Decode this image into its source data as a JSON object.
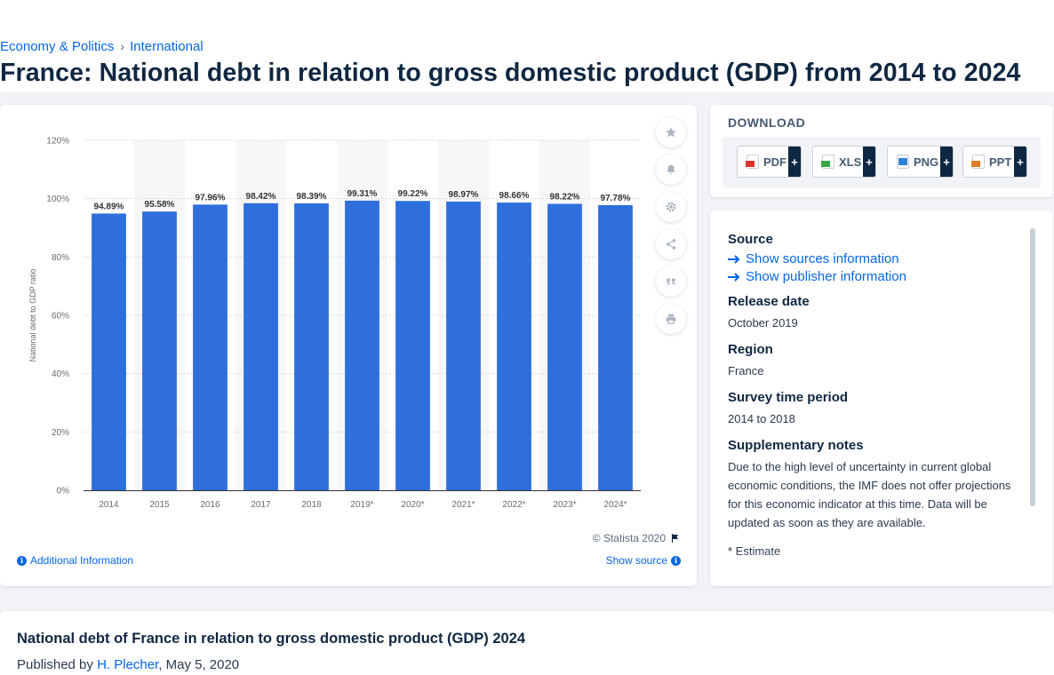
{
  "breadcrumb": {
    "items": [
      "Economy & Politics",
      "International"
    ],
    "separator": "›"
  },
  "page_title": "France: National debt in relation to gross domestic product (GDP) from 2014 to 2024",
  "chart_data": {
    "type": "bar",
    "categories": [
      "2014",
      "2015",
      "2016",
      "2017",
      "2018",
      "2019*",
      "2020*",
      "2021*",
      "2022*",
      "2023*",
      "2024*"
    ],
    "values": [
      94.89,
      95.58,
      97.96,
      98.42,
      98.39,
      99.31,
      99.22,
      98.97,
      98.66,
      98.22,
      97.78
    ],
    "value_labels": [
      "94.89%",
      "95.58%",
      "97.96%",
      "98.42%",
      "98.39%",
      "99.31%",
      "99.22%",
      "98.97%",
      "98.66%",
      "98.22%",
      "97.78%"
    ],
    "ylabel": "National debt to GDP ratio",
    "xlabel": "",
    "ylim": [
      0,
      120
    ],
    "yticks": [
      "0%",
      "20%",
      "40%",
      "60%",
      "80%",
      "100%",
      "120%"
    ],
    "grid": true,
    "bar_color": "#2e6fdb"
  },
  "chart_footer": {
    "copyright": "© Statista 2020",
    "additional_info": "Additional Information",
    "show_source": "Show source"
  },
  "tools": [
    "star-icon",
    "bell-icon",
    "gear-icon",
    "share-icon",
    "quote-icon",
    "print-icon"
  ],
  "download": {
    "title": "DOWNLOAD",
    "buttons": [
      {
        "label": "PDF",
        "color": "#d9362b"
      },
      {
        "label": "XLS",
        "color": "#3aa845"
      },
      {
        "label": "PNG",
        "color": "#2f7fd6"
      },
      {
        "label": "PPT",
        "color": "#e07a2a"
      }
    ],
    "plus": "+"
  },
  "info": {
    "source_heading": "Source",
    "show_sources": "Show sources information",
    "show_publisher": "Show publisher information",
    "release_heading": "Release date",
    "release_value": "October 2019",
    "region_heading": "Region",
    "region_value": "France",
    "period_heading": "Survey time period",
    "period_value": "2014 to 2018",
    "notes_heading": "Supplementary notes",
    "notes_value": "Due to the high level of uncertainty in current global economic conditions, the IMF does not offer projections for this economic indicator at this time. Data will be updated as soon as they are available.",
    "estimate_note": "* Estimate"
  },
  "bottom": {
    "title": "National debt of France in relation to gross domestic product (GDP) 2024",
    "published_by": "Published by",
    "author": "H. Plecher",
    "date": ", May 5, 2020"
  }
}
